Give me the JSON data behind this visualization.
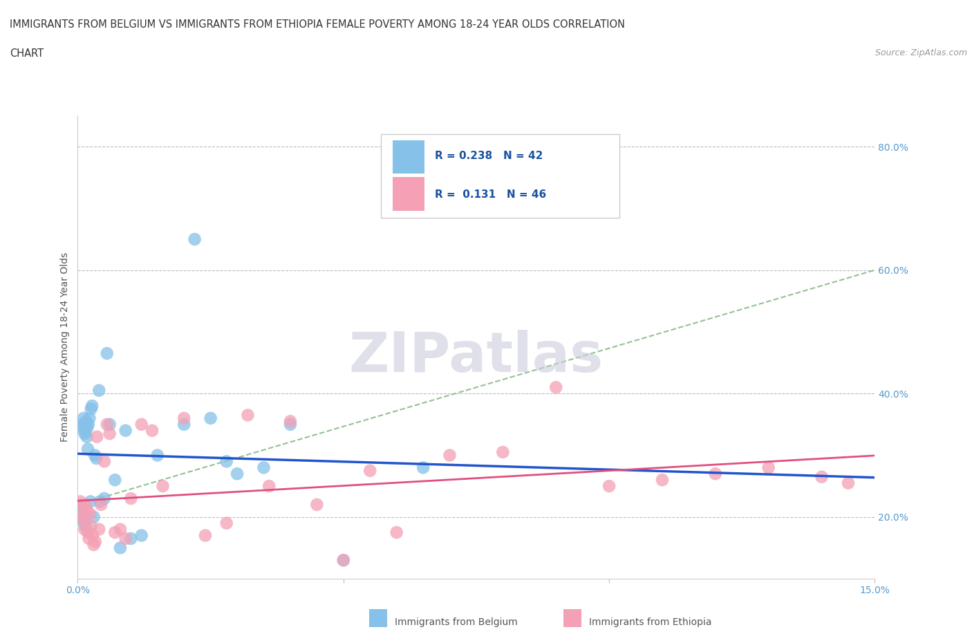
{
  "title_line1": "IMMIGRANTS FROM BELGIUM VS IMMIGRANTS FROM ETHIOPIA FEMALE POVERTY AMONG 18-24 YEAR OLDS CORRELATION",
  "title_line2": "CHART",
  "source": "Source: ZipAtlas.com",
  "ylabel": "Female Poverty Among 18-24 Year Olds",
  "xlim": [
    0.0,
    15.0
  ],
  "ylim": [
    10.0,
    85.0
  ],
  "ytick_positions": [
    20.0,
    40.0,
    60.0,
    80.0
  ],
  "ytick_labels": [
    "20.0%",
    "40.0%",
    "60.0%",
    "80.0%"
  ],
  "belgium_color": "#85C1E8",
  "ethiopia_color": "#F4A0B5",
  "belgium_R": 0.238,
  "belgium_N": 42,
  "ethiopia_R": 0.131,
  "ethiopia_N": 46,
  "trend_blue": "#2255CC",
  "trend_pink": "#E05080",
  "trend_dashed_color": "#88BB88",
  "watermark": "ZIPatlas",
  "watermark_color": "#CCCCDD",
  "belgium_x": [
    0.05,
    0.07,
    0.08,
    0.09,
    0.1,
    0.11,
    0.12,
    0.13,
    0.14,
    0.15,
    0.16,
    0.17,
    0.18,
    0.19,
    0.2,
    0.22,
    0.24,
    0.25,
    0.27,
    0.3,
    0.32,
    0.35,
    0.4,
    0.42,
    0.5,
    0.55,
    0.6,
    0.7,
    0.8,
    0.9,
    1.0,
    1.2,
    1.5,
    2.0,
    2.2,
    2.5,
    2.8,
    3.0,
    3.5,
    4.0,
    5.0,
    6.5
  ],
  "belgium_y": [
    22.0,
    21.5,
    34.5,
    35.0,
    20.5,
    36.0,
    19.0,
    33.5,
    34.0,
    18.5,
    35.5,
    33.0,
    34.5,
    31.0,
    35.0,
    36.0,
    22.5,
    37.5,
    38.0,
    20.0,
    30.0,
    29.5,
    40.5,
    22.5,
    23.0,
    46.5,
    35.0,
    26.0,
    15.0,
    34.0,
    16.5,
    17.0,
    30.0,
    35.0,
    65.0,
    36.0,
    29.0,
    27.0,
    28.0,
    35.0,
    13.0,
    28.0
  ],
  "ethiopia_x": [
    0.05,
    0.07,
    0.09,
    0.11,
    0.13,
    0.15,
    0.17,
    0.19,
    0.21,
    0.23,
    0.25,
    0.28,
    0.3,
    0.33,
    0.36,
    0.4,
    0.44,
    0.5,
    0.55,
    0.6,
    0.7,
    0.8,
    0.9,
    1.0,
    1.2,
    1.4,
    1.6,
    2.0,
    2.4,
    2.8,
    3.2,
    3.6,
    4.0,
    4.5,
    5.0,
    5.5,
    6.0,
    7.0,
    8.0,
    9.0,
    10.0,
    11.0,
    12.0,
    13.0,
    14.0,
    14.5
  ],
  "ethiopia_y": [
    22.5,
    21.5,
    20.0,
    19.5,
    18.0,
    22.0,
    21.0,
    17.5,
    16.5,
    20.5,
    18.5,
    17.0,
    15.5,
    16.0,
    33.0,
    18.0,
    22.0,
    29.0,
    35.0,
    33.5,
    17.5,
    18.0,
    16.5,
    23.0,
    35.0,
    34.0,
    25.0,
    36.0,
    17.0,
    19.0,
    36.5,
    25.0,
    35.5,
    22.0,
    13.0,
    27.5,
    17.5,
    30.0,
    30.5,
    41.0,
    25.0,
    26.0,
    27.0,
    28.0,
    26.5,
    25.5
  ]
}
